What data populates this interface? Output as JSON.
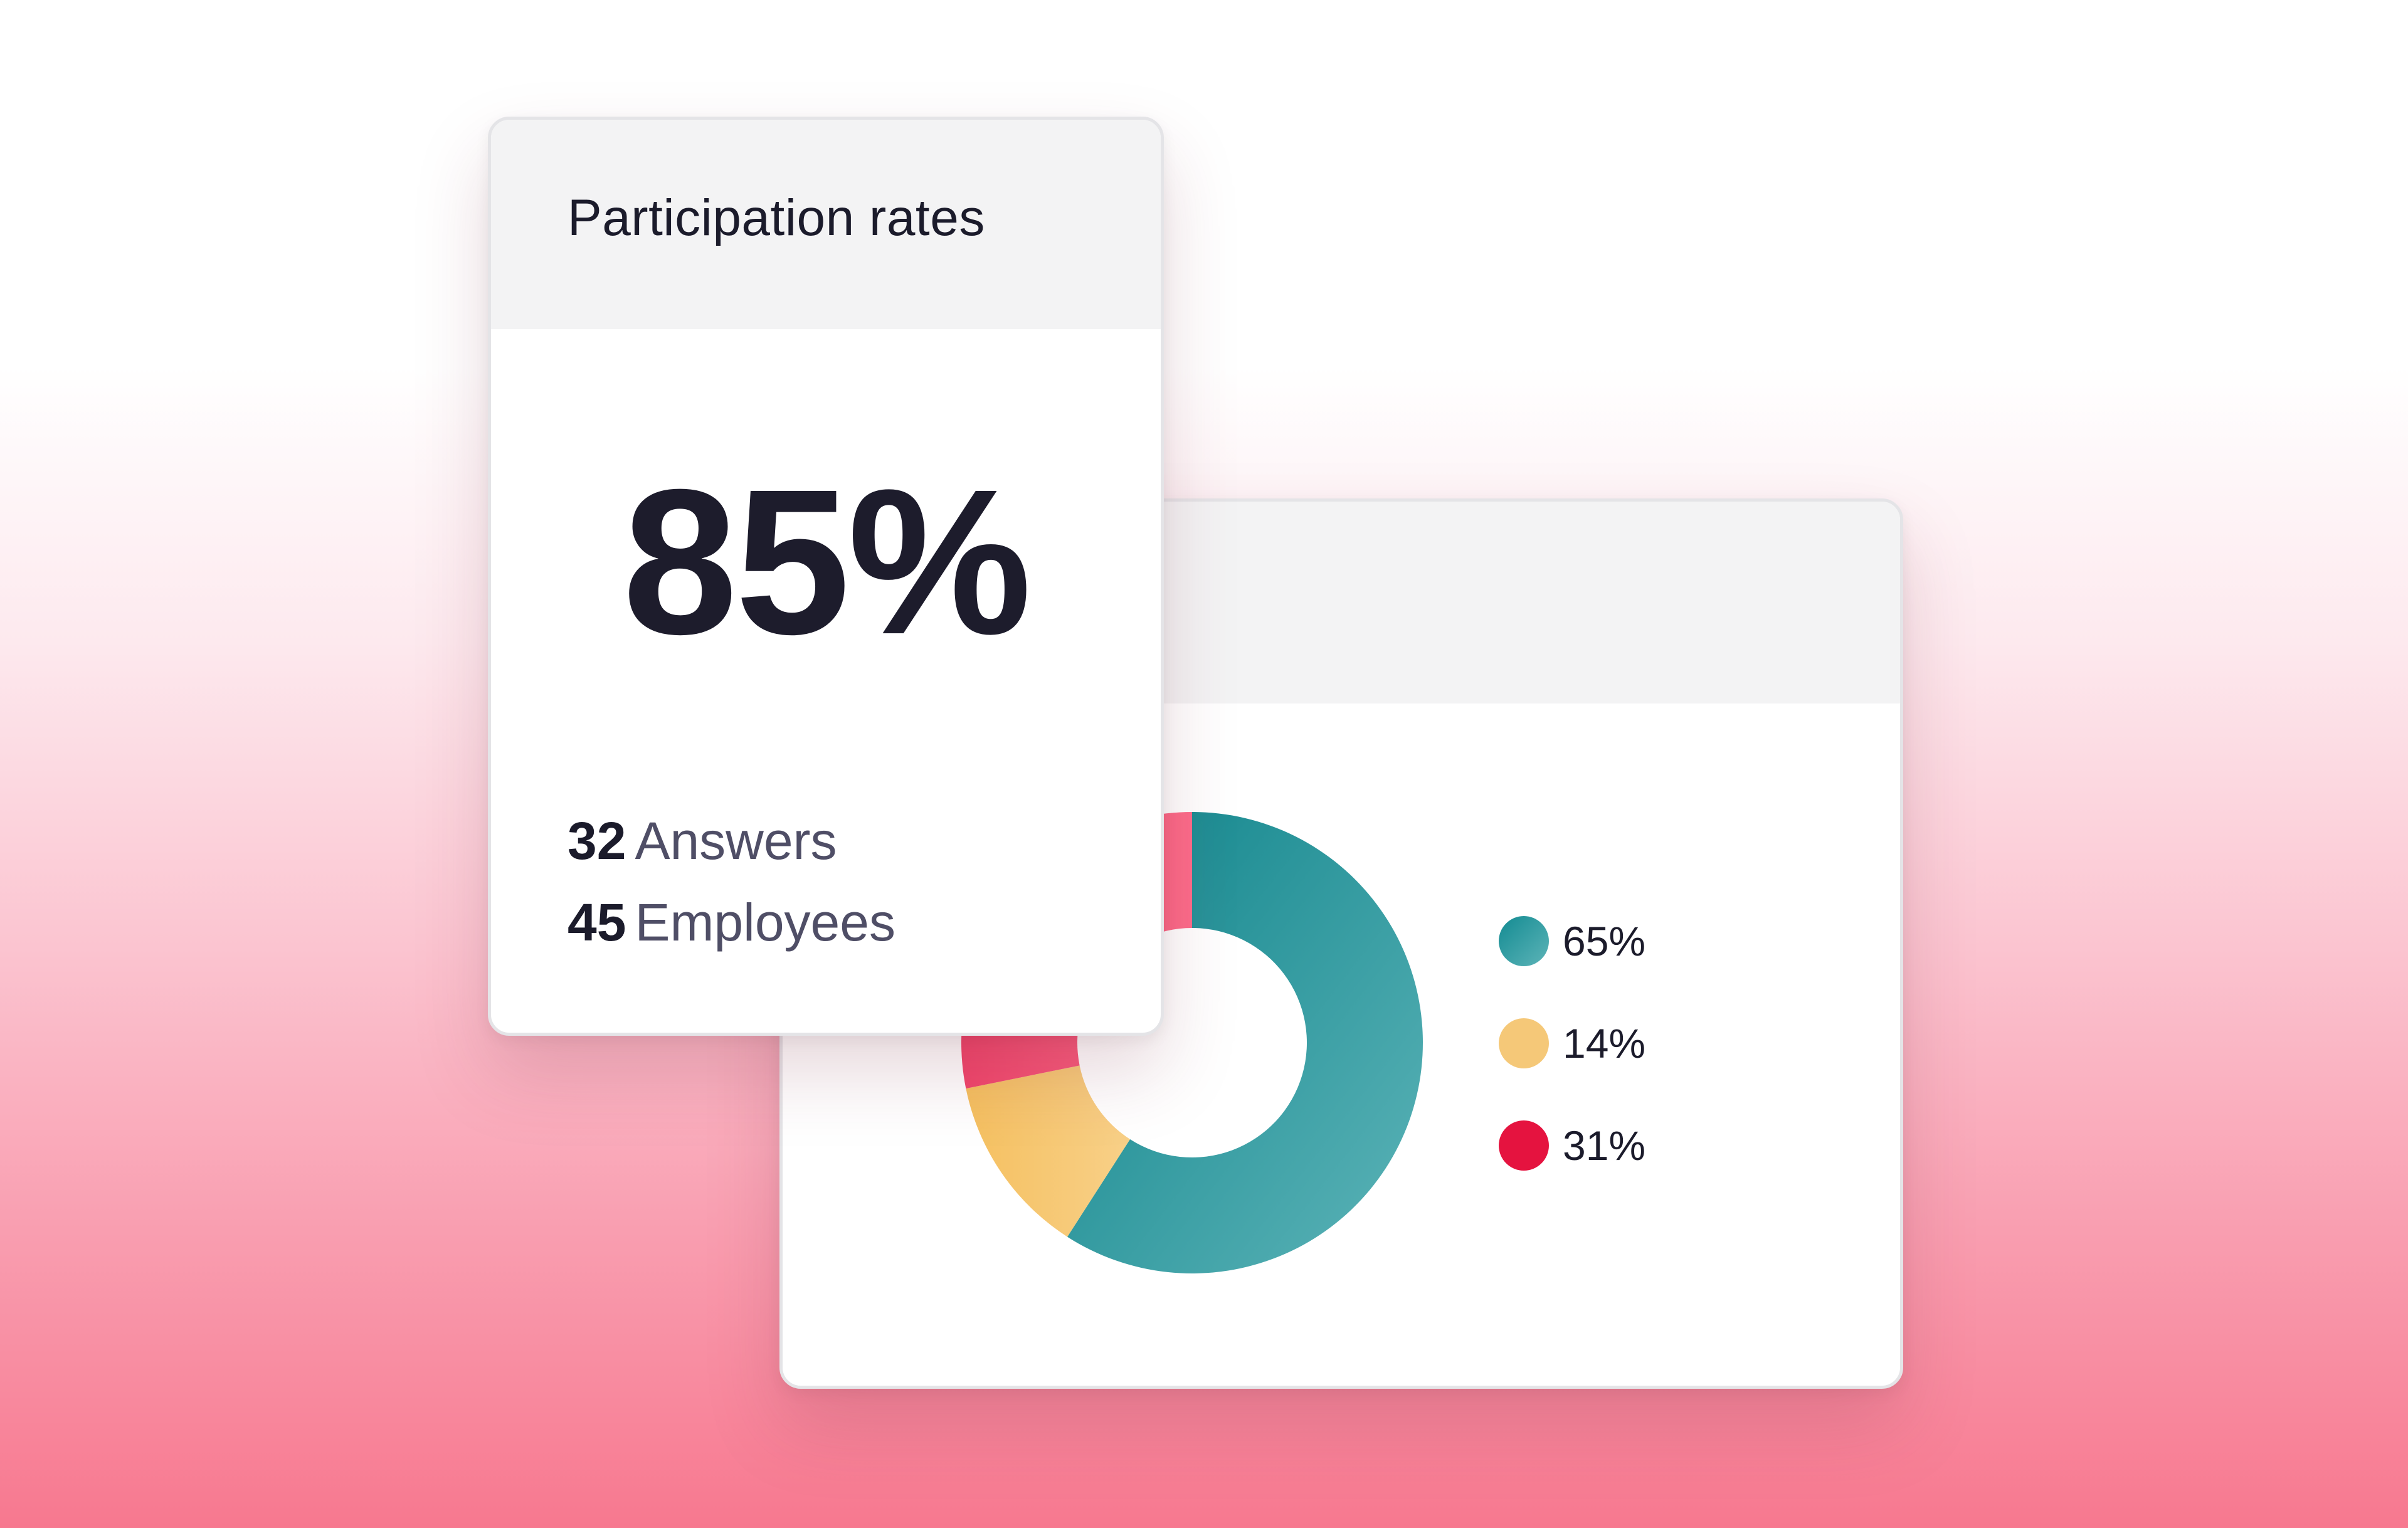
{
  "participation_card": {
    "title": "Participation rates",
    "rate": "85%",
    "rate_value": 85,
    "answers": {
      "count": "32",
      "label": "Answers"
    },
    "employees": {
      "count": "45",
      "label": "Employees"
    }
  },
  "chart_data": {
    "type": "pie",
    "style": "donut",
    "slices": [
      {
        "value": 65,
        "color": "#2a9a9f"
      },
      {
        "value": 14,
        "color": "#f5c878"
      },
      {
        "value": 31,
        "color": "#e5133f"
      }
    ],
    "legend": [
      {
        "label": "65%",
        "color": "#2a9a9f"
      },
      {
        "label": "14%",
        "color": "#f5c878"
      },
      {
        "label": "31%",
        "color": "#e5133f"
      }
    ],
    "legend_position": "right"
  }
}
